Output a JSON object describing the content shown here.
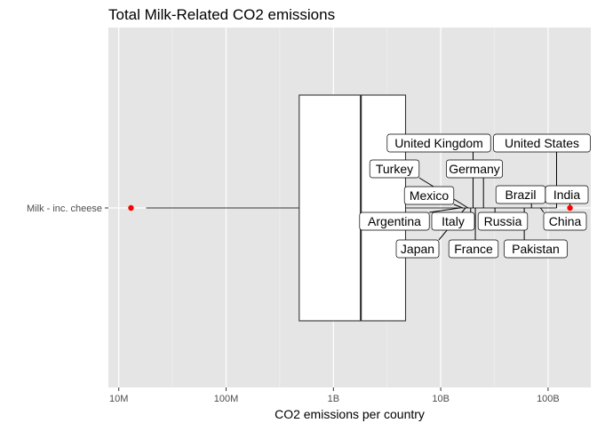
{
  "chart_data": {
    "type": "boxplot",
    "title": "Total Milk-Related CO2 emissions",
    "xlabel": "CO2 emissions per country",
    "ylabel": "",
    "x_scale": "log10",
    "xlim": [
      8000000,
      250000000000
    ],
    "x_ticks": [
      {
        "value": 10000000,
        "label": "10M"
      },
      {
        "value": 100000000,
        "label": "100M"
      },
      {
        "value": 1000000000,
        "label": "1B"
      },
      {
        "value": 10000000000,
        "label": "10B"
      },
      {
        "value": 100000000000,
        "label": "100B"
      }
    ],
    "grid": true,
    "category": "Milk - inc. cheese",
    "box": {
      "whisker_low": 18000000,
      "q1": 480000000,
      "median": 1800000000,
      "q3": 4700000000,
      "whisker_high": 120000000000
    },
    "outliers": [
      {
        "value": 13000000,
        "color": "#ff0000"
      },
      {
        "value": 160000000000,
        "color": "#ff0000"
      }
    ],
    "annotations": [
      {
        "text": "United Kingdom",
        "value": 20000000000
      },
      {
        "text": "United States",
        "value": 120000000000
      },
      {
        "text": "Turkey",
        "value": 18000000000
      },
      {
        "text": "Germany",
        "value": 25000000000
      },
      {
        "text": "Mexico",
        "value": 16000000000
      },
      {
        "text": "Brazil",
        "value": 70000000000
      },
      {
        "text": "India",
        "value": 160000000000
      },
      {
        "text": "Argentina",
        "value": 15000000000
      },
      {
        "text": "Italy",
        "value": 19000000000
      },
      {
        "text": "Russia",
        "value": 32000000000
      },
      {
        "text": "China",
        "value": 85000000000
      },
      {
        "text": "Japan",
        "value": 17000000000
      },
      {
        "text": "France",
        "value": 21000000000
      },
      {
        "text": "Pakistan",
        "value": 60000000000
      }
    ]
  }
}
